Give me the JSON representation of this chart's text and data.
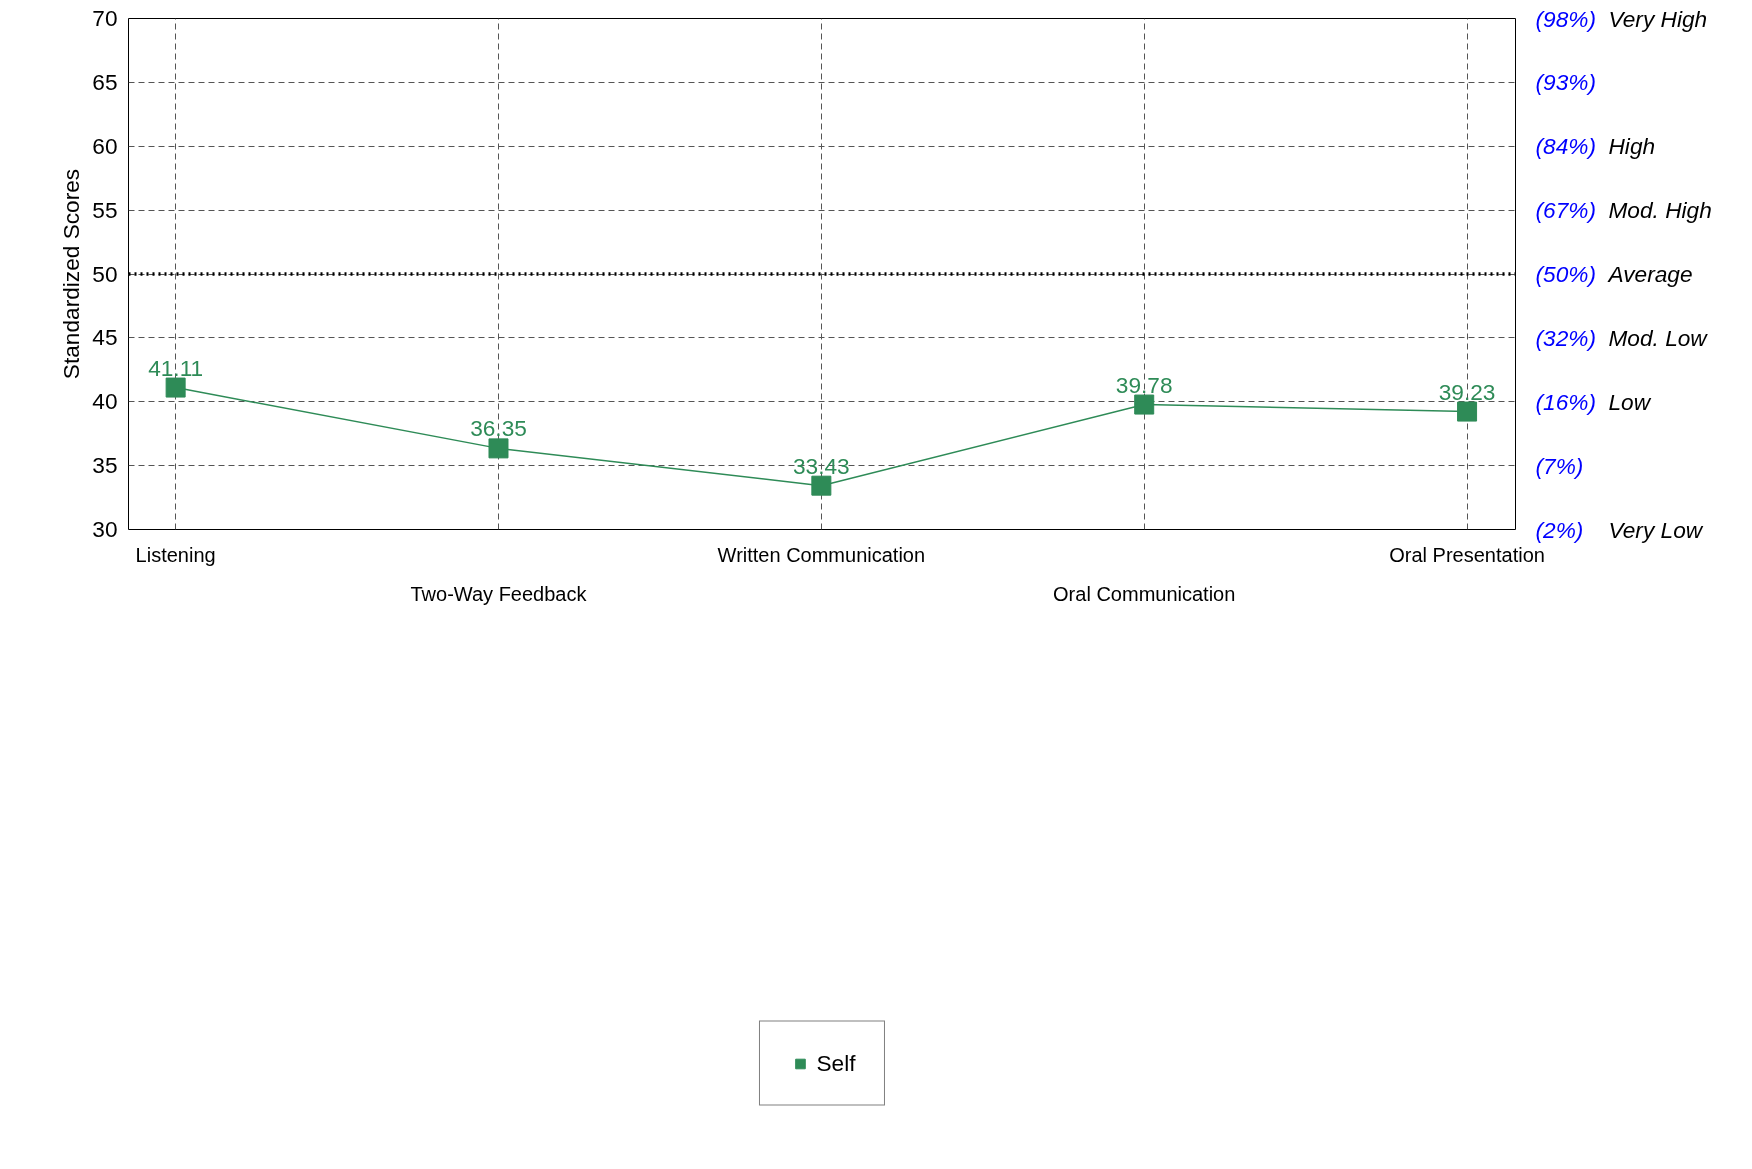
{
  "chart_data": {
    "type": "line",
    "ylabel": "Standardized Scores",
    "categories": [
      "Listening",
      "Two-Way Feedback",
      "Written Communication",
      "Oral Communication",
      "Oral Presentation"
    ],
    "series": [
      {
        "name": "Self",
        "color": "#2e8b57",
        "values": [
          41.11,
          36.35,
          33.43,
          39.78,
          39.23
        ]
      }
    ],
    "ylim": [
      30,
      70
    ],
    "yticks": [
      30,
      35,
      40,
      45,
      50,
      55,
      60,
      65,
      70
    ],
    "y2_categories": [
      "(98%) Very High",
      "(93%)",
      "(84%) High",
      "(67%) Mod. High",
      "(50%) Average",
      "(32%) Mod. Low",
      "(16%) Low",
      "(7%)",
      "(2%) Very Low"
    ],
    "ref_lines": [
      {
        "axis": "y",
        "value": 50,
        "label": null,
        "color": "#000000",
        "line_style": "dotted"
      }
    ],
    "grid": true,
    "legend": "bottom",
    "marker": "square",
    "line_style": "solid",
    "data_labels": true
  }
}
